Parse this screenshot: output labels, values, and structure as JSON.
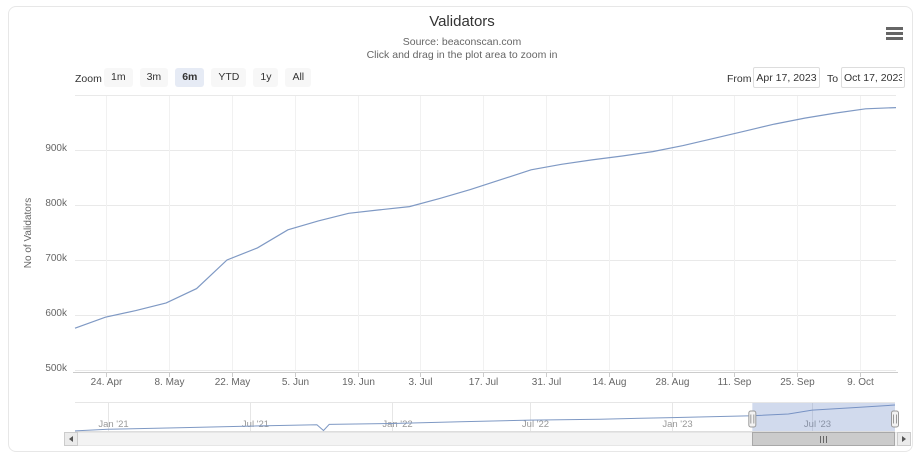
{
  "header": {
    "title": "Validators",
    "subtitle_line1": "Source: beaconscan.com",
    "subtitle_line2": "Click and drag in the plot area to zoom in"
  },
  "range_selector": {
    "zoom_label": "Zoom",
    "buttons": [
      "1m",
      "3m",
      "6m",
      "YTD",
      "1y",
      "All"
    ],
    "selected": "6m",
    "from_label": "From",
    "from_value": "Apr 17, 2023",
    "to_label": "To",
    "to_value": "Oct 17, 2023"
  },
  "colors": {
    "line": "#7f99c4",
    "button_bg": "#f7f7f7",
    "selected_button_bg": "#e6ebf5",
    "grid_horizontal": "#e9e9e9",
    "grid_vertical": "#f1f1f1",
    "axis_line": "#cccccc",
    "navigator_mask": "rgba(102,133,194,0.3)",
    "muted_text": "#666666"
  },
  "chart_data": {
    "type": "line",
    "title": "Validators",
    "ylabel": "No of Validators",
    "yaxis": {
      "min": 500000,
      "max": 1000000,
      "gridline_step": 100000,
      "ticks": [
        {
          "label": "900k",
          "value": 900000
        },
        {
          "label": "800k",
          "value": 800000
        },
        {
          "label": "700k",
          "value": 700000
        },
        {
          "label": "600k",
          "value": 600000
        },
        {
          "label": "500k",
          "value": 500000
        }
      ]
    },
    "xaxis": {
      "from": "Apr 17, 2023",
      "to": "Oct 17, 2023",
      "tick_labels": [
        "24. Apr",
        "8. May",
        "22. May",
        "5. Jun",
        "19. Jun",
        "3. Jul",
        "17. Jul",
        "31. Jul",
        "14. Aug",
        "28. Aug",
        "11. Sep",
        "25. Sep",
        "9. Oct"
      ]
    },
    "series": [
      {
        "name": "Validators",
        "interval": "weekly",
        "start": "Apr 17, 2023",
        "end": "Oct 17, 2023",
        "values": [
          576000,
          596000,
          608000,
          622000,
          648000,
          700000,
          722000,
          755000,
          771000,
          785000,
          791000,
          797000,
          812000,
          828000,
          846000,
          864000,
          874000,
          882000,
          889000,
          897000,
          908000,
          921000,
          934000,
          947000,
          958000,
          967000,
          975000,
          977000
        ]
      }
    ],
    "navigator": {
      "range_start": "Oct 2020",
      "range_end": "Oct 2023",
      "labels": [
        {
          "label": "Jan '21",
          "t": 0.04
        },
        {
          "label": "Jul '21",
          "t": 0.213
        },
        {
          "label": "Jan '22",
          "t": 0.387
        },
        {
          "label": "Jul '22",
          "t": 0.555
        },
        {
          "label": "Jan '23",
          "t": 0.728
        },
        {
          "label": "Jul '23",
          "t": 0.899
        }
      ],
      "points": [
        [
          0,
          3000
        ],
        [
          0.04,
          63000
        ],
        [
          0.12,
          118000
        ],
        [
          0.213,
          185000
        ],
        [
          0.295,
          238000
        ],
        [
          0.303,
          20000
        ],
        [
          0.31,
          248000
        ],
        [
          0.387,
          282000
        ],
        [
          0.47,
          350000
        ],
        [
          0.555,
          408000
        ],
        [
          0.64,
          445000
        ],
        [
          0.728,
          503000
        ],
        [
          0.8,
          558000
        ],
        [
          0.826,
          576000
        ],
        [
          0.87,
          640000
        ],
        [
          0.899,
          785000
        ],
        [
          0.95,
          880000
        ],
        [
          1,
          977000
        ]
      ],
      "selected_range": [
        0.826,
        1.0
      ]
    }
  }
}
